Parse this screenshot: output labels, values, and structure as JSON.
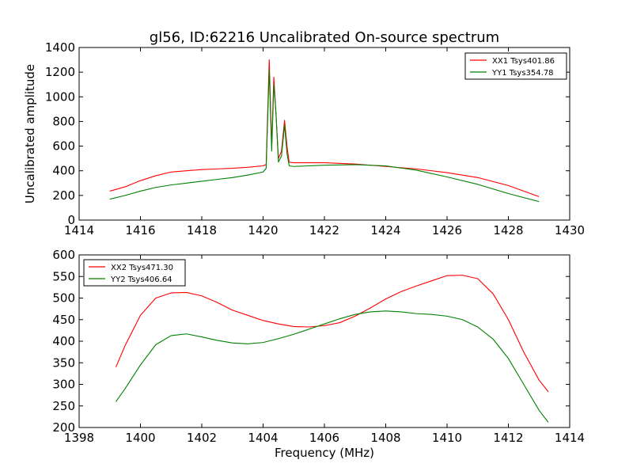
{
  "title": "gl56, ID:62216 Uncalibrated On-source spectrum",
  "colors": {
    "xx": "#ff0000",
    "yy": "#008000"
  },
  "chart_data": [
    {
      "type": "line",
      "title": "gl56, ID:62216 Uncalibrated On-source spectrum",
      "xlabel": "",
      "ylabel": "Uncalibrated amplitude",
      "xlim": [
        1414,
        1430
      ],
      "ylim": [
        0,
        1400
      ],
      "xticks": [
        1414,
        1416,
        1418,
        1420,
        1422,
        1424,
        1426,
        1428,
        1430
      ],
      "yticks": [
        0,
        200,
        400,
        600,
        800,
        1000,
        1200,
        1400
      ],
      "grid": false,
      "legend": "top-right",
      "series": [
        {
          "name": "XX1 Tsys401.86",
          "color": "#ff0000",
          "points": [
            [
              1415.0,
              235
            ],
            [
              1415.5,
              270
            ],
            [
              1416.0,
              320
            ],
            [
              1416.5,
              360
            ],
            [
              1417.0,
              390
            ],
            [
              1417.5,
              400
            ],
            [
              1418.0,
              410
            ],
            [
              1418.5,
              415
            ],
            [
              1419.0,
              420
            ],
            [
              1419.5,
              428
            ],
            [
              1420.0,
              440
            ],
            [
              1420.1,
              450
            ],
            [
              1420.2,
              1300
            ],
            [
              1420.28,
              600
            ],
            [
              1420.35,
              1160
            ],
            [
              1420.42,
              860
            ],
            [
              1420.5,
              500
            ],
            [
              1420.6,
              560
            ],
            [
              1420.7,
              810
            ],
            [
              1420.78,
              600
            ],
            [
              1420.85,
              470
            ],
            [
              1421.0,
              465
            ],
            [
              1422.0,
              465
            ],
            [
              1423.0,
              455
            ],
            [
              1424.0,
              435
            ],
            [
              1425.0,
              415
            ],
            [
              1426.0,
              385
            ],
            [
              1427.0,
              345
            ],
            [
              1428.0,
              280
            ],
            [
              1429.0,
              190
            ]
          ]
        },
        {
          "name": "YY1 Tsys354.78",
          "color": "#008000",
          "points": [
            [
              1415.0,
              170
            ],
            [
              1415.5,
              200
            ],
            [
              1416.0,
              235
            ],
            [
              1416.5,
              265
            ],
            [
              1417.0,
              285
            ],
            [
              1417.5,
              300
            ],
            [
              1418.0,
              315
            ],
            [
              1418.5,
              330
            ],
            [
              1419.0,
              345
            ],
            [
              1419.5,
              365
            ],
            [
              1420.0,
              390
            ],
            [
              1420.1,
              420
            ],
            [
              1420.2,
              1220
            ],
            [
              1420.28,
              560
            ],
            [
              1420.35,
              1100
            ],
            [
              1420.42,
              870
            ],
            [
              1420.5,
              470
            ],
            [
              1420.6,
              520
            ],
            [
              1420.7,
              770
            ],
            [
              1420.78,
              540
            ],
            [
              1420.85,
              440
            ],
            [
              1421.0,
              435
            ],
            [
              1422.0,
              445
            ],
            [
              1423.0,
              450
            ],
            [
              1424.0,
              440
            ],
            [
              1425.0,
              405
            ],
            [
              1426.0,
              350
            ],
            [
              1427.0,
              290
            ],
            [
              1428.0,
              215
            ],
            [
              1429.0,
              150
            ]
          ]
        }
      ]
    },
    {
      "type": "line",
      "title": "",
      "xlabel": "Frequency (MHz)",
      "ylabel": "",
      "xlim": [
        1398,
        1414
      ],
      "ylim": [
        200,
        600
      ],
      "xticks": [
        1398,
        1400,
        1402,
        1404,
        1406,
        1408,
        1410,
        1412,
        1414
      ],
      "yticks": [
        200,
        250,
        300,
        350,
        400,
        450,
        500,
        550,
        600
      ],
      "grid": false,
      "legend": "top-left",
      "series": [
        {
          "name": "XX2 Tsys471.30",
          "color": "#ff0000",
          "points": [
            [
              1399.2,
              340
            ],
            [
              1399.5,
              390
            ],
            [
              1400.0,
              460
            ],
            [
              1400.5,
              500
            ],
            [
              1401.0,
              512
            ],
            [
              1401.5,
              513
            ],
            [
              1402.0,
              505
            ],
            [
              1402.5,
              490
            ],
            [
              1403.0,
              472
            ],
            [
              1403.5,
              460
            ],
            [
              1404.0,
              448
            ],
            [
              1404.5,
              440
            ],
            [
              1405.0,
              434
            ],
            [
              1405.5,
              433
            ],
            [
              1406.0,
              436
            ],
            [
              1406.5,
              443
            ],
            [
              1407.0,
              458
            ],
            [
              1407.5,
              477
            ],
            [
              1408.0,
              498
            ],
            [
              1408.5,
              515
            ],
            [
              1409.0,
              528
            ],
            [
              1409.5,
              540
            ],
            [
              1410.0,
              552
            ],
            [
              1410.5,
              553
            ],
            [
              1411.0,
              545
            ],
            [
              1411.5,
              510
            ],
            [
              1412.0,
              450
            ],
            [
              1412.5,
              375
            ],
            [
              1413.0,
              310
            ],
            [
              1413.3,
              283
            ]
          ]
        },
        {
          "name": "YY2 Tsys406.64",
          "color": "#008000",
          "points": [
            [
              1399.2,
              260
            ],
            [
              1399.5,
              290
            ],
            [
              1400.0,
              345
            ],
            [
              1400.5,
              392
            ],
            [
              1401.0,
              413
            ],
            [
              1401.5,
              417
            ],
            [
              1402.0,
              410
            ],
            [
              1402.5,
              402
            ],
            [
              1403.0,
              396
            ],
            [
              1403.5,
              394
            ],
            [
              1404.0,
              397
            ],
            [
              1404.5,
              406
            ],
            [
              1405.0,
              416
            ],
            [
              1405.5,
              428
            ],
            [
              1406.0,
              440
            ],
            [
              1406.5,
              452
            ],
            [
              1407.0,
              462
            ],
            [
              1407.5,
              468
            ],
            [
              1408.0,
              470
            ],
            [
              1408.5,
              468
            ],
            [
              1409.0,
              464
            ],
            [
              1409.5,
              462
            ],
            [
              1410.0,
              458
            ],
            [
              1410.5,
              450
            ],
            [
              1411.0,
              433
            ],
            [
              1411.5,
              405
            ],
            [
              1412.0,
              360
            ],
            [
              1412.5,
              300
            ],
            [
              1413.0,
              240
            ],
            [
              1413.3,
              212
            ]
          ]
        }
      ]
    }
  ]
}
